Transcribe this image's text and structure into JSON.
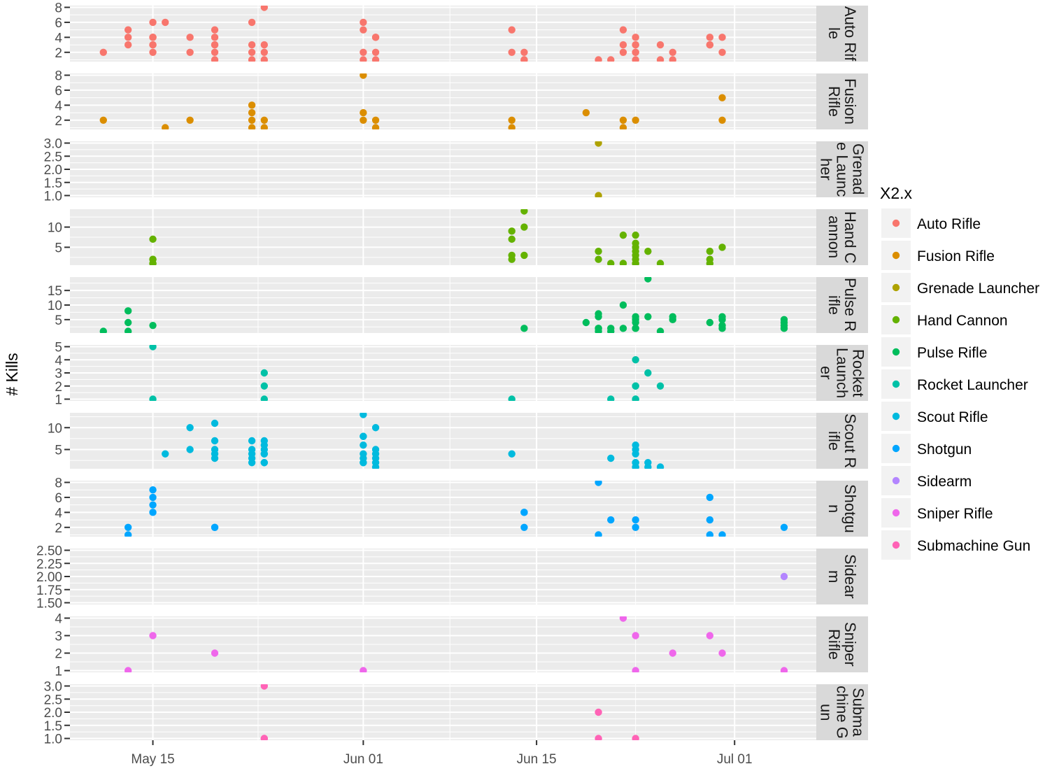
{
  "chart_data": {
    "type": "scatter",
    "ylabel": "# Kills",
    "xlabel": "",
    "x_ticks": [
      "May 15",
      "Jun 01",
      "Jun 15",
      "Jul 01"
    ],
    "xlim": [
      "May 08",
      "Jul 08"
    ],
    "grid": true,
    "legend": {
      "title": "X2.x",
      "placement": "right"
    },
    "facets": [
      {
        "name": "Auto Rifle",
        "color": "#F8766D",
        "ylim": [
          1,
          8
        ],
        "yticks": [
          "2",
          "4",
          "6",
          "8"
        ],
        "points": [
          [
            "May 11",
            2
          ],
          [
            "May 13",
            5
          ],
          [
            "May 13",
            4
          ],
          [
            "May 13",
            3
          ],
          [
            "May 15",
            6
          ],
          [
            "May 15",
            4
          ],
          [
            "May 15",
            4
          ],
          [
            "May 15",
            3
          ],
          [
            "May 15",
            3
          ],
          [
            "May 15",
            2
          ],
          [
            "May 15",
            4
          ],
          [
            "May 16",
            6
          ],
          [
            "May 18",
            4
          ],
          [
            "May 18",
            2
          ],
          [
            "May 20",
            5
          ],
          [
            "May 20",
            4
          ],
          [
            "May 20",
            3
          ],
          [
            "May 20",
            3
          ],
          [
            "May 20",
            2
          ],
          [
            "May 20",
            1
          ],
          [
            "May 23",
            6
          ],
          [
            "May 23",
            3
          ],
          [
            "May 23",
            2
          ],
          [
            "May 23",
            1
          ],
          [
            "May 24",
            8
          ],
          [
            "May 24",
            1
          ],
          [
            "May 24",
            3
          ],
          [
            "May 24",
            2
          ],
          [
            "Jun 01",
            6
          ],
          [
            "Jun 01",
            5
          ],
          [
            "Jun 01",
            2
          ],
          [
            "Jun 01",
            1
          ],
          [
            "Jun 02",
            4
          ],
          [
            "Jun 02",
            4
          ],
          [
            "Jun 02",
            2
          ],
          [
            "Jun 02",
            1
          ],
          [
            "Jun 13",
            5
          ],
          [
            "Jun 13",
            2
          ],
          [
            "Jun 14",
            2
          ],
          [
            "Jun 14",
            1
          ],
          [
            "Jun 14",
            1
          ],
          [
            "Jun 20",
            1
          ],
          [
            "Jun 21",
            1
          ],
          [
            "Jun 22",
            3
          ],
          [
            "Jun 22",
            5
          ],
          [
            "Jun 22",
            2
          ],
          [
            "Jun 23",
            4
          ],
          [
            "Jun 23",
            3
          ],
          [
            "Jun 23",
            3
          ],
          [
            "Jun 23",
            2
          ],
          [
            "Jun 23",
            2
          ],
          [
            "Jun 23",
            1
          ],
          [
            "Jun 25",
            3
          ],
          [
            "Jun 25",
            1
          ],
          [
            "Jun 26",
            2
          ],
          [
            "Jun 26",
            1
          ],
          [
            "Jun 29",
            4
          ],
          [
            "Jun 29",
            3
          ],
          [
            "Jun 29",
            3
          ],
          [
            "Jun 30",
            4
          ],
          [
            "Jun 30",
            2
          ]
        ]
      },
      {
        "name": "Fusion Rifle",
        "color": "#DB8E00",
        "ylim": [
          1,
          8
        ],
        "yticks": [
          "2",
          "4",
          "6",
          "8"
        ],
        "points": [
          [
            "May 11",
            2
          ],
          [
            "May 16",
            1
          ],
          [
            "May 18",
            2
          ],
          [
            "May 23",
            4
          ],
          [
            "May 23",
            3
          ],
          [
            "May 23",
            2
          ],
          [
            "May 23",
            1
          ],
          [
            "May 24",
            2
          ],
          [
            "May 24",
            1
          ],
          [
            "Jun 01",
            8
          ],
          [
            "Jun 01",
            3
          ],
          [
            "Jun 01",
            2
          ],
          [
            "Jun 02",
            2
          ],
          [
            "Jun 02",
            1
          ],
          [
            "Jun 13",
            2
          ],
          [
            "Jun 13",
            1
          ],
          [
            "Jun 19",
            3
          ],
          [
            "Jun 22",
            1
          ],
          [
            "Jun 22",
            2
          ],
          [
            "Jun 23",
            2
          ],
          [
            "Jun 30",
            5
          ],
          [
            "Jun 30",
            2
          ]
        ]
      },
      {
        "name": "Grenade Launcher",
        "color": "#AEA200",
        "ylim": [
          1,
          3
        ],
        "yticks": [
          "1.0",
          "1.5",
          "2.0",
          "2.5",
          "3.0"
        ],
        "points": [
          [
            "Jun 20",
            3
          ],
          [
            "Jun 20",
            1
          ]
        ]
      },
      {
        "name": "Hand Cannon",
        "color": "#64B200",
        "ylim": [
          1,
          14
        ],
        "yticks": [
          "5",
          "10"
        ],
        "points": [
          [
            "May 15",
            7
          ],
          [
            "May 15",
            2
          ],
          [
            "May 15",
            2
          ],
          [
            "May 15",
            1
          ],
          [
            "May 15",
            1
          ],
          [
            "Jun 13",
            9
          ],
          [
            "Jun 13",
            7
          ],
          [
            "Jun 13",
            3
          ],
          [
            "Jun 13",
            2
          ],
          [
            "Jun 14",
            14
          ],
          [
            "Jun 14",
            10
          ],
          [
            "Jun 14",
            3
          ],
          [
            "Jun 20",
            2
          ],
          [
            "Jun 20",
            4
          ],
          [
            "Jun 21",
            1
          ],
          [
            "Jun 22",
            8
          ],
          [
            "Jun 22",
            1
          ],
          [
            "Jun 23",
            8
          ],
          [
            "Jun 23",
            6
          ],
          [
            "Jun 23",
            5
          ],
          [
            "Jun 23",
            4
          ],
          [
            "Jun 23",
            3
          ],
          [
            "Jun 23",
            2
          ],
          [
            "Jun 23",
            1
          ],
          [
            "Jun 23",
            1
          ],
          [
            "Jun 24",
            4
          ],
          [
            "Jun 25",
            1
          ],
          [
            "Jun 29",
            4
          ],
          [
            "Jun 29",
            2
          ],
          [
            "Jun 29",
            1
          ],
          [
            "Jun 30",
            5
          ]
        ]
      },
      {
        "name": "Pulse Rifle",
        "color": "#00BD5C",
        "ylim": [
          1,
          19
        ],
        "yticks": [
          "5",
          "10",
          "15"
        ],
        "points": [
          [
            "May 11",
            1
          ],
          [
            "May 13",
            8
          ],
          [
            "May 13",
            4
          ],
          [
            "May 13",
            1
          ],
          [
            "May 15",
            3
          ],
          [
            "Jun 14",
            2
          ],
          [
            "Jun 19",
            4
          ],
          [
            "Jun 20",
            7
          ],
          [
            "Jun 20",
            6
          ],
          [
            "Jun 20",
            2
          ],
          [
            "Jun 20",
            2
          ],
          [
            "Jun 20",
            1
          ],
          [
            "Jun 21",
            2
          ],
          [
            "Jun 21",
            1
          ],
          [
            "Jun 22",
            10
          ],
          [
            "Jun 22",
            2
          ],
          [
            "Jun 23",
            6
          ],
          [
            "Jun 23",
            5
          ],
          [
            "Jun 23",
            4
          ],
          [
            "Jun 23",
            2
          ],
          [
            "Jun 23",
            2
          ],
          [
            "Jun 24",
            19
          ],
          [
            "Jun 24",
            6
          ],
          [
            "Jun 25",
            1
          ],
          [
            "Jun 26",
            6
          ],
          [
            "Jun 26",
            5
          ],
          [
            "Jun 29",
            4
          ],
          [
            "Jun 30",
            6
          ],
          [
            "Jun 30",
            5
          ],
          [
            "Jun 30",
            3
          ],
          [
            "Jun 30",
            2
          ],
          [
            "Jul 05",
            5
          ],
          [
            "Jul 05",
            4
          ],
          [
            "Jul 05",
            3
          ],
          [
            "Jul 05",
            2
          ]
        ]
      },
      {
        "name": "Rocket Launcher",
        "color": "#00C1A7",
        "ylim": [
          1,
          5
        ],
        "yticks": [
          "1",
          "2",
          "3",
          "4",
          "5"
        ],
        "points": [
          [
            "May 15",
            5
          ],
          [
            "May 15",
            1
          ],
          [
            "May 24",
            3
          ],
          [
            "May 24",
            2
          ],
          [
            "May 24",
            1
          ],
          [
            "Jun 13",
            1
          ],
          [
            "Jun 21",
            1
          ],
          [
            "Jun 23",
            4
          ],
          [
            "Jun 23",
            2
          ],
          [
            "Jun 23",
            2
          ],
          [
            "Jun 23",
            1
          ],
          [
            "Jun 23",
            1
          ],
          [
            "Jun 24",
            3
          ],
          [
            "Jun 25",
            2
          ]
        ]
      },
      {
        "name": "Scout Rifle",
        "color": "#00BADE",
        "ylim": [
          1,
          13
        ],
        "yticks": [
          "5",
          "10"
        ],
        "points": [
          [
            "May 16",
            4
          ],
          [
            "May 18",
            10
          ],
          [
            "May 18",
            5
          ],
          [
            "May 20",
            11
          ],
          [
            "May 20",
            7
          ],
          [
            "May 20",
            5
          ],
          [
            "May 20",
            4
          ],
          [
            "May 20",
            3
          ],
          [
            "May 23",
            7
          ],
          [
            "May 23",
            5
          ],
          [
            "May 23",
            4
          ],
          [
            "May 23",
            3
          ],
          [
            "May 23",
            2
          ],
          [
            "May 24",
            7
          ],
          [
            "May 24",
            6
          ],
          [
            "May 24",
            5
          ],
          [
            "May 24",
            4
          ],
          [
            "May 24",
            4
          ],
          [
            "May 24",
            2
          ],
          [
            "May 24",
            2
          ],
          [
            "Jun 01",
            13
          ],
          [
            "Jun 01",
            8
          ],
          [
            "Jun 01",
            8
          ],
          [
            "Jun 01",
            6
          ],
          [
            "Jun 01",
            4
          ],
          [
            "Jun 01",
            3
          ],
          [
            "Jun 01",
            2
          ],
          [
            "Jun 01",
            2
          ],
          [
            "Jun 02",
            10
          ],
          [
            "Jun 02",
            5
          ],
          [
            "Jun 02",
            4
          ],
          [
            "Jun 02",
            3
          ],
          [
            "Jun 02",
            2
          ],
          [
            "Jun 02",
            1
          ],
          [
            "Jun 13",
            4
          ],
          [
            "Jun 21",
            3
          ],
          [
            "Jun 23",
            6
          ],
          [
            "Jun 23",
            5
          ],
          [
            "Jun 23",
            4
          ],
          [
            "Jun 23",
            2
          ],
          [
            "Jun 23",
            2
          ],
          [
            "Jun 23",
            1
          ],
          [
            "Jun 23",
            1
          ],
          [
            "Jun 24",
            2
          ],
          [
            "Jun 24",
            1
          ],
          [
            "Jun 25",
            1
          ]
        ]
      },
      {
        "name": "Shotgun",
        "color": "#00A6FF",
        "ylim": [
          1,
          8
        ],
        "yticks": [
          "2",
          "4",
          "6",
          "8"
        ],
        "points": [
          [
            "May 13",
            2
          ],
          [
            "May 13",
            1
          ],
          [
            "May 15",
            7
          ],
          [
            "May 15",
            6
          ],
          [
            "May 15",
            5
          ],
          [
            "May 15",
            4
          ],
          [
            "May 20",
            2
          ],
          [
            "May 20",
            2
          ],
          [
            "Jun 14",
            4
          ],
          [
            "Jun 14",
            4
          ],
          [
            "Jun 14",
            2
          ],
          [
            "Jun 20",
            8
          ],
          [
            "Jun 20",
            1
          ],
          [
            "Jun 21",
            3
          ],
          [
            "Jun 23",
            3
          ],
          [
            "Jun 23",
            2
          ],
          [
            "Jun 29",
            6
          ],
          [
            "Jun 29",
            3
          ],
          [
            "Jun 29",
            1
          ],
          [
            "Jun 30",
            1
          ],
          [
            "Jul 05",
            2
          ]
        ]
      },
      {
        "name": "Sidearm",
        "color": "#B385FF",
        "ylim": [
          1.5,
          2.5
        ],
        "yticks": [
          "1.50",
          "1.75",
          "2.00",
          "2.25",
          "2.50"
        ],
        "points": [
          [
            "Jul 05",
            2
          ]
        ]
      },
      {
        "name": "Sniper Rifle",
        "color": "#EF67EB",
        "ylim": [
          1,
          4
        ],
        "yticks": [
          "1",
          "2",
          "3",
          "4"
        ],
        "points": [
          [
            "May 13",
            1
          ],
          [
            "May 15",
            3
          ],
          [
            "May 20",
            2
          ],
          [
            "Jun 01",
            1
          ],
          [
            "Jun 22",
            4
          ],
          [
            "Jun 23",
            3
          ],
          [
            "Jun 23",
            1
          ],
          [
            "Jun 26",
            2
          ],
          [
            "Jun 29",
            3
          ],
          [
            "Jun 30",
            2
          ],
          [
            "Jul 05",
            1
          ]
        ]
      },
      {
        "name": "Submachine Gun",
        "color": "#FF63B6",
        "ylim": [
          1,
          3
        ],
        "yticks": [
          "1.0",
          "1.5",
          "2.0",
          "2.5",
          "3.0"
        ],
        "points": [
          [
            "May 24",
            3
          ],
          [
            "May 24",
            1
          ],
          [
            "May 24",
            1
          ],
          [
            "Jun 20",
            2
          ],
          [
            "Jun 20",
            1
          ],
          [
            "Jun 23",
            1
          ]
        ]
      }
    ]
  }
}
